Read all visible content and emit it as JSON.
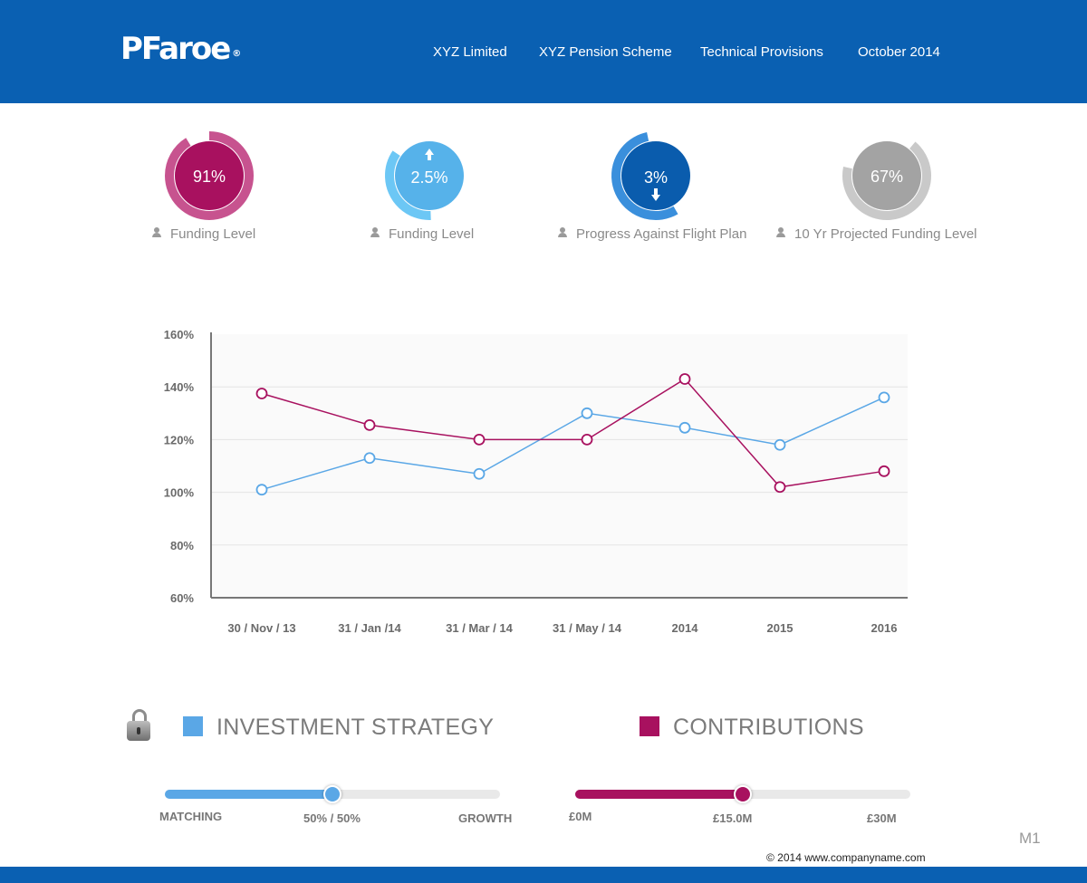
{
  "header": {
    "logo": "PFaroe",
    "logo_mark": "®",
    "nav": [
      "XYZ Limited",
      "XYZ Pension Scheme",
      "Technical Provisions",
      "October 2014"
    ]
  },
  "kpis": [
    {
      "value": "91%",
      "label": "Funding Level",
      "color": "#a8115f",
      "ring_color": "#c7538f",
      "indicator": "none",
      "fill_fraction": 0.91
    },
    {
      "value": "2.5%",
      "label": "Funding Level",
      "color": "#56b2ea",
      "ring_color": "#6cc7f5",
      "indicator": "up-arrow-icon",
      "fill_fraction": 0.35
    },
    {
      "value": "3%",
      "label": "Progress Against Flight Plan",
      "color": "#0a5cad",
      "ring_color": "#3a8fdc",
      "indicator": "down-arrow-icon",
      "fill_fraction": 0.55
    },
    {
      "value": "67%",
      "label": "10 Yr Projected Funding Level",
      "color": "#a3a3a3",
      "ring_color": "#c9c9c9",
      "indicator": "none",
      "fill_fraction": 0.67
    }
  ],
  "chart_data": {
    "type": "line",
    "categories": [
      "30 / Nov / 13",
      "31 / Jan /14",
      "31 / Mar / 14",
      "31 / May / 14",
      "2014",
      "2015",
      "2016"
    ],
    "y_ticks": [
      "160%",
      "140%",
      "120%",
      "100%",
      "80%",
      "60%"
    ],
    "ylim": [
      60,
      160
    ],
    "grid": true,
    "series": [
      {
        "color": "#5aa7e6",
        "values": [
          101,
          113,
          107,
          130,
          124.5,
          118,
          136
        ]
      },
      {
        "color": "#a8115f",
        "values": [
          137.5,
          125.5,
          120,
          120,
          143,
          102,
          108
        ]
      }
    ],
    "title": "",
    "xlabel": "",
    "ylabel": ""
  },
  "investment": {
    "title": "INVESTMENT STRATEGY",
    "color": "#5aa7e6",
    "min_label": "MATCHING",
    "value_label": "50% / 50%",
    "max_label": "GROWTH",
    "value_fraction": 0.5,
    "icon": "lock-icon"
  },
  "contributions": {
    "title": "CONTRIBUTIONS",
    "color": "#a8115f",
    "min_label": "£0M",
    "value_label": "£15.0M",
    "max_label": "£30M",
    "value_fraction": 0.5
  },
  "footer": {
    "page_id": "M1",
    "copyright": "© 2014 www.companyname.com"
  }
}
